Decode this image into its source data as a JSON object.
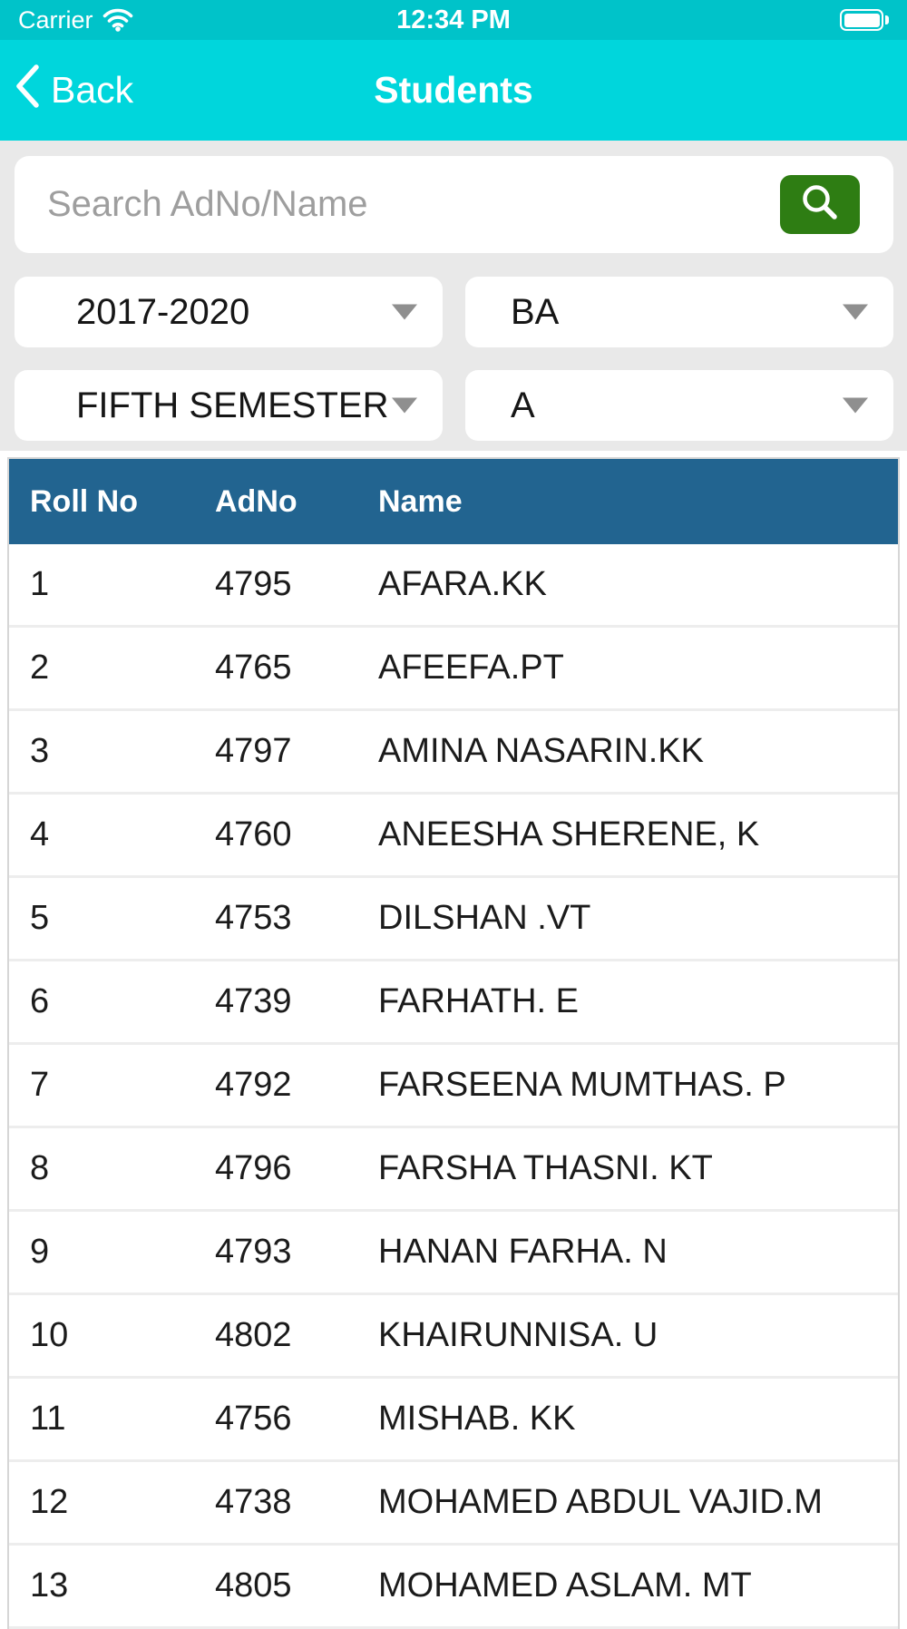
{
  "status_bar": {
    "carrier": "Carrier",
    "time": "12:34 PM"
  },
  "nav": {
    "back_label": "Back",
    "title": "Students"
  },
  "search": {
    "placeholder": "Search AdNo/Name"
  },
  "filters": [
    {
      "value": "2017-2020"
    },
    {
      "value": "BA"
    },
    {
      "value": "FIFTH SEMESTER"
    },
    {
      "value": "A"
    }
  ],
  "table": {
    "columns": [
      "Roll No",
      "AdNo",
      "Name"
    ],
    "rows": [
      {
        "roll": "1",
        "adno": "4795",
        "name": "AFARA.KK"
      },
      {
        "roll": "2",
        "adno": "4765",
        "name": "AFEEFA.PT"
      },
      {
        "roll": "3",
        "adno": "4797",
        "name": "AMINA NASARIN.KK"
      },
      {
        "roll": "4",
        "adno": "4760",
        "name": "ANEESHA SHERENE, K"
      },
      {
        "roll": "5",
        "adno": "4753",
        "name": "DILSHAN .VT"
      },
      {
        "roll": "6",
        "adno": "4739",
        "name": "FARHATH. E"
      },
      {
        "roll": "7",
        "adno": "4792",
        "name": "FARSEENA MUMTHAS. P"
      },
      {
        "roll": "8",
        "adno": "4796",
        "name": "FARSHA THASNI. KT"
      },
      {
        "roll": "9",
        "adno": "4793",
        "name": "HANAN FARHA. N"
      },
      {
        "roll": "10",
        "adno": "4802",
        "name": "KHAIRUNNISA. U"
      },
      {
        "roll": "11",
        "adno": "4756",
        "name": "MISHAB. KK"
      },
      {
        "roll": "12",
        "adno": "4738",
        "name": "MOHAMED ABDUL VAJID.M"
      },
      {
        "roll": "13",
        "adno": "4805",
        "name": "MOHAMED ASLAM. MT"
      }
    ]
  },
  "colors": {
    "status_bar_bg": "#00c3c9",
    "navbar_bg": "#00d6dc",
    "section_bg": "#e9e9e9",
    "search_button_green": "#2e7d13",
    "table_header_bg": "#226490"
  }
}
